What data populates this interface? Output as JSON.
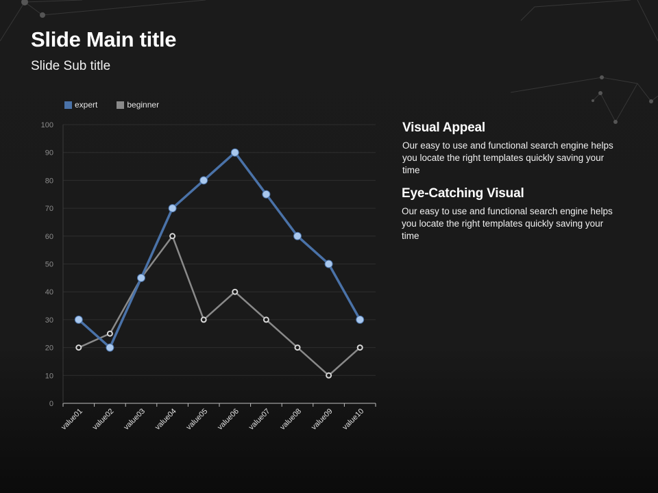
{
  "slide": {
    "title": "Slide Main title",
    "subtitle": "Slide Sub title"
  },
  "content_blocks": [
    {
      "heading": "Visual Appeal",
      "body": "Our easy to use and functional search engine helps you locate the right templates quickly saving your time"
    },
    {
      "heading": "Eye-Catching Visual",
      "body": "Our easy to use and functional search engine helps you locate the right templates quickly saving your time"
    }
  ],
  "chart_data": {
    "type": "line",
    "categories": [
      "value01",
      "value02",
      "value03",
      "value04",
      "value05",
      "value06",
      "value07",
      "value08",
      "value09",
      "value10"
    ],
    "series": [
      {
        "name": "expert",
        "values": [
          30,
          20,
          45,
          70,
          80,
          90,
          75,
          60,
          50,
          30
        ],
        "color": "#4a72a8",
        "marker": "#a9c8ee"
      },
      {
        "name": "beginner",
        "values": [
          20,
          25,
          45,
          60,
          30,
          40,
          30,
          20,
          10,
          20
        ],
        "color": "#8a8a8a",
        "marker": "#d8d8d8"
      }
    ],
    "ylim": [
      0,
      100
    ],
    "yticks": [
      0,
      10,
      20,
      30,
      40,
      50,
      60,
      70,
      80,
      90,
      100
    ],
    "grid": true,
    "legend_position": "top-left"
  }
}
